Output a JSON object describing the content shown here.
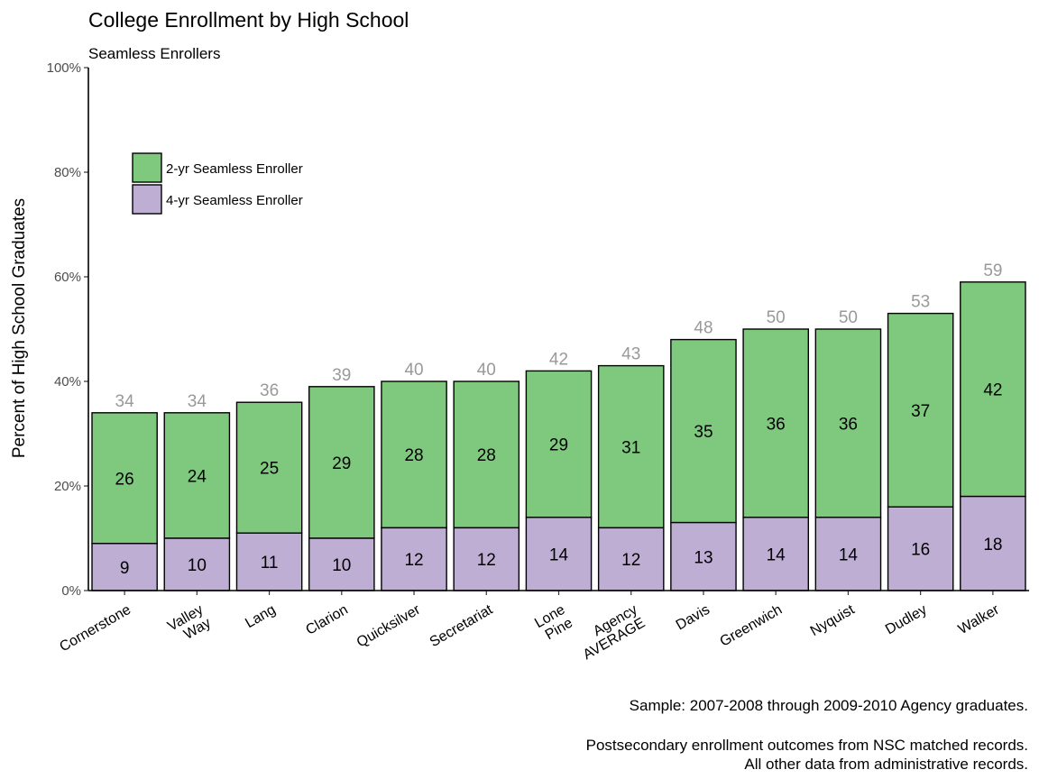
{
  "chart_data": {
    "type": "bar",
    "stacked": true,
    "title": "College Enrollment by High School",
    "subtitle": "Seamless Enrollers",
    "ylabel": "Percent of High School Graduates",
    "xlabel": "",
    "ylim": [
      0,
      100
    ],
    "yticks": [
      "0%",
      "20%",
      "40%",
      "60%",
      "80%",
      "100%"
    ],
    "grid": false,
    "legend_position": "top-left",
    "categories": [
      [
        "Cornerstone"
      ],
      [
        "Valley",
        "Way"
      ],
      [
        "Lang"
      ],
      [
        "Clarion"
      ],
      [
        "Quicksilver"
      ],
      [
        "Secretariat"
      ],
      [
        "Lone",
        "Pine"
      ],
      [
        "Agency",
        "AVERAGE"
      ],
      [
        "Davis"
      ],
      [
        "Greenwich"
      ],
      [
        "Nyquist"
      ],
      [
        "Dudley"
      ],
      [
        "Walker"
      ]
    ],
    "series": [
      {
        "name": "4-yr Seamless Enroller",
        "color": "#beaed4",
        "values": [
          9,
          10,
          11,
          10,
          12,
          12,
          14,
          12,
          13,
          14,
          14,
          16,
          18
        ],
        "labels": [
          "9",
          "10",
          "11",
          "10",
          "12",
          "12",
          "14",
          "12",
          "13",
          "14",
          "14",
          "16",
          "18"
        ]
      },
      {
        "name": "2-yr Seamless Enroller",
        "color": "#7fc97f",
        "values": [
          26,
          24,
          25,
          29,
          28,
          28,
          29,
          31,
          35,
          36,
          36,
          37,
          42
        ],
        "labels": [
          "26",
          "24",
          "25",
          "29",
          "28",
          "28",
          "29",
          "31",
          "35",
          "36",
          "36",
          "37",
          "42"
        ]
      }
    ],
    "totals": [
      34,
      34,
      36,
      39,
      40,
      40,
      42,
      43,
      48,
      50,
      50,
      53,
      59
    ],
    "total_labels": [
      "34",
      "34",
      "36",
      "39",
      "40",
      "40",
      "42",
      "43",
      "48",
      "50",
      "50",
      "53",
      "59"
    ],
    "legend": [
      {
        "label": "2-yr Seamless Enroller",
        "color": "#7fc97f"
      },
      {
        "label": "4-yr Seamless Enroller",
        "color": "#beaed4"
      }
    ],
    "caption": [
      "Sample: 2007-2008 through 2009-2010 Agency graduates.",
      "",
      "Postsecondary enrollment outcomes from NSC matched records.",
      "All other data from administrative records."
    ]
  }
}
